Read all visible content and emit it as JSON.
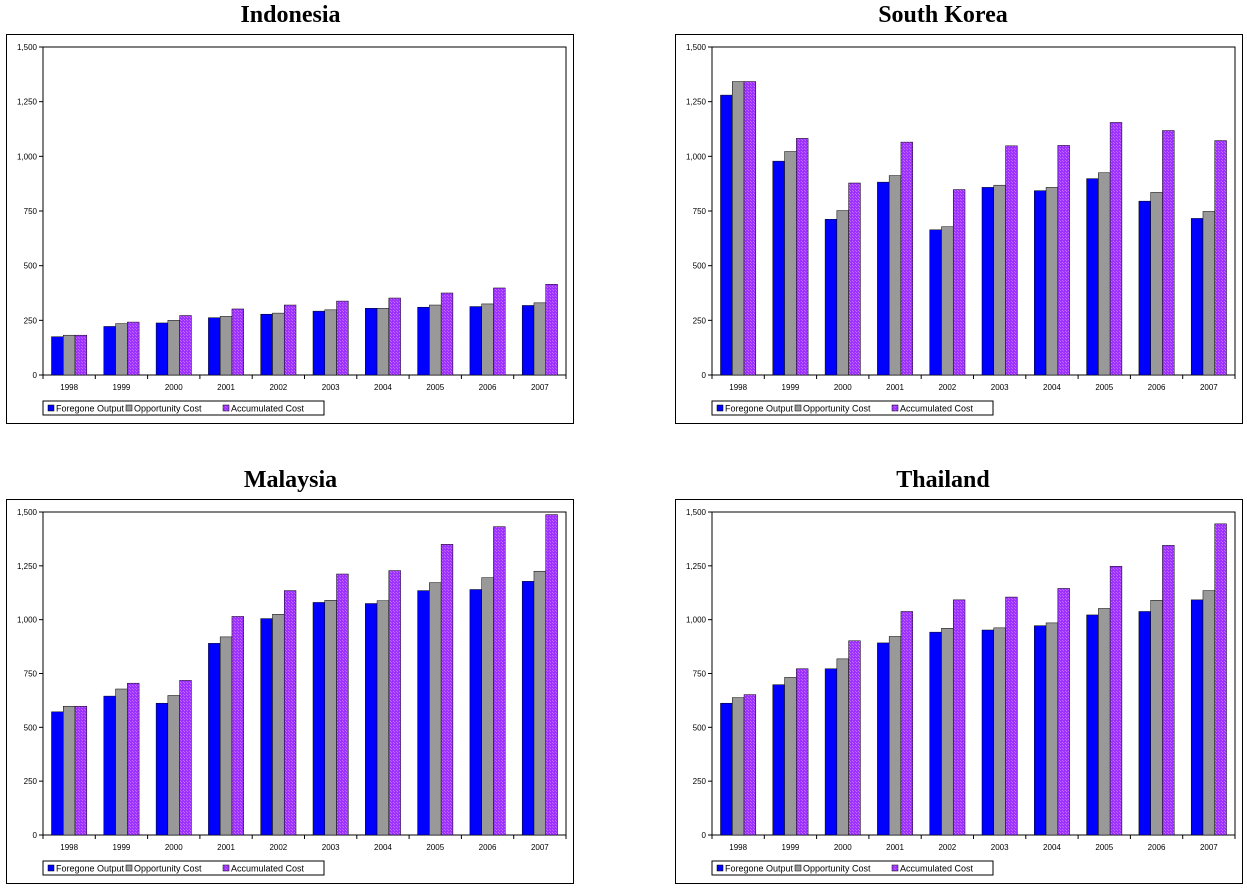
{
  "colors": {
    "foregone": "#0000FF",
    "opportunity": "#999999",
    "accumulated": "#9A33FF",
    "hatch": "#CC66FF"
  },
  "chart_data": [
    {
      "type": "bar",
      "title": "Indonesia",
      "categories": [
        "1998",
        "1999",
        "2000",
        "2001",
        "2002",
        "2003",
        "2004",
        "2005",
        "2006",
        "2007"
      ],
      "ylim": [
        0,
        1500
      ],
      "yticks": [
        "0",
        "250",
        "500",
        "750",
        "1,000",
        "1,250",
        "1,500"
      ],
      "legend": "bottom-left",
      "series": [
        {
          "name": "Foregone Output",
          "values": [
            175,
            222,
            238,
            262,
            278,
            292,
            305,
            310,
            313,
            318
          ]
        },
        {
          "name": "Opportunity Cost",
          "values": [
            182,
            235,
            250,
            268,
            283,
            298,
            305,
            320,
            325,
            330
          ]
        },
        {
          "name": "Accumulated Cost",
          "values": [
            182,
            242,
            272,
            302,
            320,
            338,
            352,
            375,
            398,
            415
          ]
        }
      ]
    },
    {
      "type": "bar",
      "title": "South Korea",
      "categories": [
        "1998",
        "1999",
        "2000",
        "2001",
        "2002",
        "2003",
        "2004",
        "2005",
        "2006",
        "2007"
      ],
      "ylim": [
        0,
        1500
      ],
      "yticks": [
        "0",
        "250",
        "500",
        "750",
        "1,000",
        "1,250",
        "1,500"
      ],
      "legend": "bottom-left",
      "series": [
        {
          "name": "Foregone Output",
          "values": [
            1280,
            978,
            712,
            882,
            664,
            858,
            843,
            898,
            795,
            716
          ]
        },
        {
          "name": "Opportunity Cost",
          "values": [
            1342,
            1022,
            752,
            912,
            678,
            868,
            858,
            925,
            835,
            748
          ]
        },
        {
          "name": "Accumulated Cost",
          "values": [
            1342,
            1082,
            878,
            1065,
            848,
            1048,
            1050,
            1155,
            1118,
            1072
          ]
        }
      ]
    },
    {
      "type": "bar",
      "title": "Malaysia",
      "categories": [
        "1998",
        "1999",
        "2000",
        "2001",
        "2002",
        "2003",
        "2004",
        "2005",
        "2006",
        "2007"
      ],
      "ylim": [
        0,
        1500
      ],
      "yticks": [
        "0",
        "250",
        "500",
        "750",
        "1,000",
        "1,250",
        "1,500"
      ],
      "legend": "bottom-left",
      "series": [
        {
          "name": "Foregone Output",
          "values": [
            572,
            645,
            612,
            890,
            1005,
            1080,
            1075,
            1135,
            1140,
            1178
          ]
        },
        {
          "name": "Opportunity Cost",
          "values": [
            598,
            678,
            648,
            920,
            1025,
            1090,
            1088,
            1172,
            1195,
            1225
          ]
        },
        {
          "name": "Accumulated Cost",
          "values": [
            598,
            705,
            718,
            1015,
            1135,
            1212,
            1228,
            1350,
            1432,
            1488
          ]
        }
      ]
    },
    {
      "type": "bar",
      "title": "Thailand",
      "categories": [
        "1998",
        "1999",
        "2000",
        "2001",
        "2002",
        "2003",
        "2004",
        "2005",
        "2006",
        "2007"
      ],
      "ylim": [
        0,
        1500
      ],
      "yticks": [
        "0",
        "250",
        "500",
        "750",
        "1,000",
        "1,250",
        "1,500"
      ],
      "legend": "bottom-left",
      "series": [
        {
          "name": "Foregone Output",
          "values": [
            612,
            698,
            772,
            892,
            942,
            952,
            972,
            1022,
            1038,
            1092
          ]
        },
        {
          "name": "Opportunity Cost",
          "values": [
            638,
            732,
            818,
            922,
            960,
            962,
            985,
            1052,
            1090,
            1135
          ]
        },
        {
          "name": "Accumulated Cost",
          "values": [
            652,
            772,
            902,
            1038,
            1092,
            1105,
            1145,
            1248,
            1345,
            1445
          ]
        }
      ]
    }
  ]
}
